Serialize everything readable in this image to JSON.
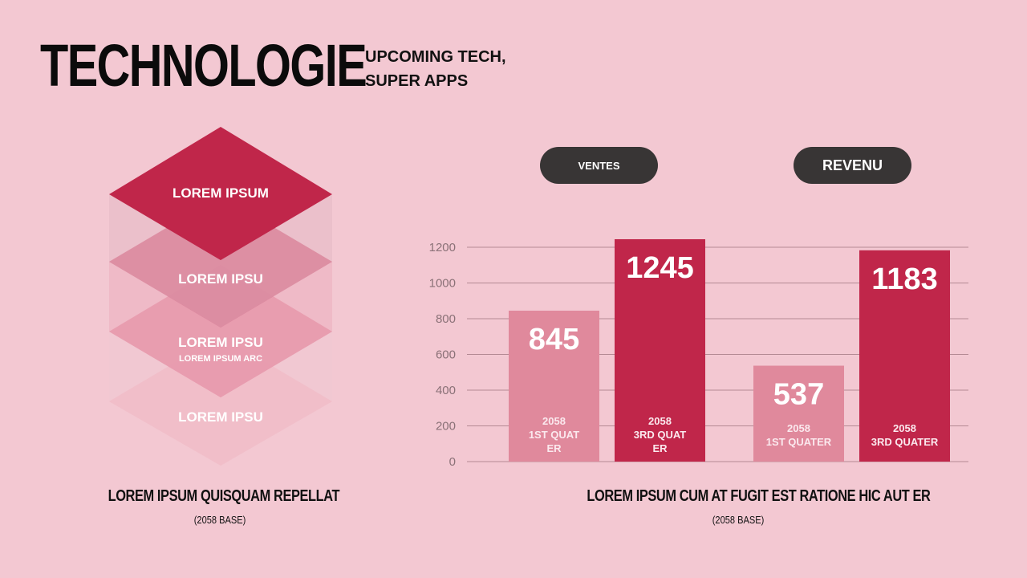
{
  "header": {
    "title": "TECHNOLOGIE",
    "subtitle_lines": [
      "UPCOMING TECH,",
      "SUPER APPS"
    ]
  },
  "stack": {
    "layers": [
      {
        "label": "LOREM IPSUM",
        "sublabel": ""
      },
      {
        "label": "LOREM IPSU",
        "sublabel": ""
      },
      {
        "label": "LOREM IPSU",
        "sublabel": "LOREM IPSUM ARC"
      },
      {
        "label": "LOREM IPSU",
        "sublabel": ""
      }
    ],
    "caption": "LOREM IPSUM QUISQUAM REPELLAT",
    "caption_sub": "(2058 BASE)"
  },
  "chart": {
    "pill_left": "VENTES",
    "pill_right": "REVENU",
    "caption": "LOREM IPSUM CUM AT FUGIT EST RATIONE HIC AUT ER",
    "caption_sub": "(2058 BASE)"
  },
  "colors": {
    "background": "#f3c8d2",
    "accent_dark": "#c0264a",
    "accent_light": "#e0899c",
    "pill": "#383535"
  },
  "chart_data": {
    "type": "bar",
    "ylim": [
      0,
      1200
    ],
    "yticks": [
      0,
      200,
      400,
      600,
      800,
      1000,
      1200
    ],
    "grid": true,
    "bars": [
      {
        "value": 845,
        "value_label": "845",
        "label_lines": [
          "2058",
          "1ST QUAT",
          "ER"
        ],
        "shade": "light"
      },
      {
        "value": 1245,
        "value_label": "1245",
        "label_lines": [
          "2058",
          "3RD QUAT",
          "ER"
        ],
        "shade": "dark"
      },
      {
        "value": 537,
        "value_label": "537",
        "label_lines": [
          "2058",
          "1ST QUATER"
        ],
        "shade": "light"
      },
      {
        "value": 1183,
        "value_label": "1183",
        "label_lines": [
          "2058",
          "3RD QUATER"
        ],
        "shade": "dark"
      }
    ]
  }
}
